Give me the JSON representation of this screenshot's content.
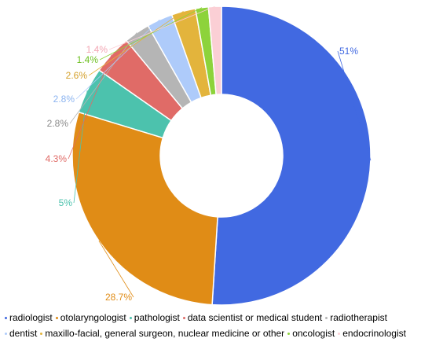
{
  "chart_data": {
    "type": "pie",
    "donut": true,
    "categories": [
      "radiologist",
      "otolaryngologist",
      "pathologist",
      "data scientist or medical student",
      "radiotherapist",
      "dentist",
      "maxillo-facial, general surgeon, nuclear medicine or other",
      "oncologist",
      "endocrinologist"
    ],
    "series": [
      {
        "values": [
          51,
          28.7,
          5,
          4.3,
          2.8,
          2.8,
          2.6,
          1.4,
          1.4
        ],
        "labels": [
          "51%",
          "28.7%",
          "5%",
          "4.3%",
          "2.8%",
          "2.8%",
          "2.6%",
          "1.4%",
          "1.4%"
        ]
      }
    ],
    "colors": [
      "#4169E1",
      "#E08C16",
      "#4CC2AD",
      "#E06B67",
      "#B5B5B5",
      "#AECBFA",
      "#E3B43C",
      "#8DD33B",
      "#FBCFD5"
    ],
    "start": "top",
    "direction": "clockwise",
    "legend_position": "bottom",
    "legend_rows": [
      [
        0,
        1,
        2,
        3,
        4
      ],
      [
        5,
        6,
        7,
        8
      ]
    ]
  }
}
